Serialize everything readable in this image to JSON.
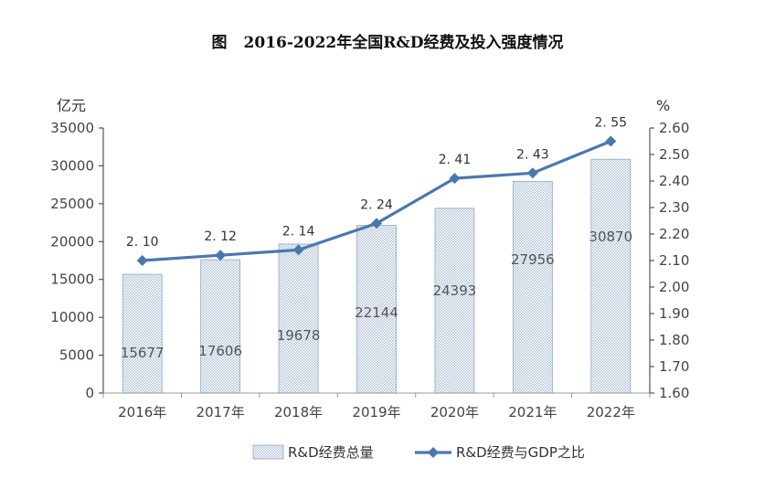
{
  "chart_data": {
    "type": "bar",
    "title_prefix": "图",
    "title": "2016-2022年全国R&D经费及投入强度情况",
    "categories": [
      "2016年",
      "2017年",
      "2018年",
      "2019年",
      "2020年",
      "2021年",
      "2022年"
    ],
    "series": [
      {
        "name": "R&D经费总量",
        "kind": "bar",
        "axis": "left",
        "values": [
          15677,
          17606,
          19678,
          22144,
          24393,
          27956,
          30870
        ],
        "labels": [
          "15677",
          "17606",
          "19678",
          "22144",
          "24393",
          "27956",
          "30870"
        ]
      },
      {
        "name": "R&D经费与GDP之比",
        "kind": "line",
        "axis": "right",
        "values": [
          2.1,
          2.12,
          2.14,
          2.24,
          2.41,
          2.43,
          2.55
        ],
        "labels": [
          "2. 10",
          "2. 12",
          "2. 14",
          "2. 24",
          "2. 41",
          "2. 43",
          "2. 55"
        ]
      }
    ],
    "left_axis": {
      "unit": "亿元",
      "ylim": [
        0,
        35000
      ],
      "ticks": [
        0,
        5000,
        10000,
        15000,
        20000,
        25000,
        30000,
        35000
      ],
      "tick_labels": [
        "0",
        "5000",
        "10000",
        "15000",
        "20000",
        "25000",
        "30000",
        "35000"
      ]
    },
    "right_axis": {
      "unit": "%",
      "ylim": [
        1.6,
        2.6
      ],
      "ticks": [
        1.6,
        1.7,
        1.8,
        1.9,
        2.0,
        2.1,
        2.2,
        2.3,
        2.4,
        2.5,
        2.6
      ],
      "tick_labels": [
        "1.60",
        "1.70",
        "1.80",
        "1.90",
        "2.00",
        "2.10",
        "2.20",
        "2.30",
        "2.40",
        "2.50",
        "2.60"
      ]
    },
    "legend": {
      "placement": "bottom-center"
    },
    "grid": false,
    "colors": {
      "bar_fill": "#c9d6e8",
      "bar_edge": "#8ea9c9",
      "line": "#4a78ad",
      "axis": "#333333",
      "text": "#444444"
    }
  }
}
